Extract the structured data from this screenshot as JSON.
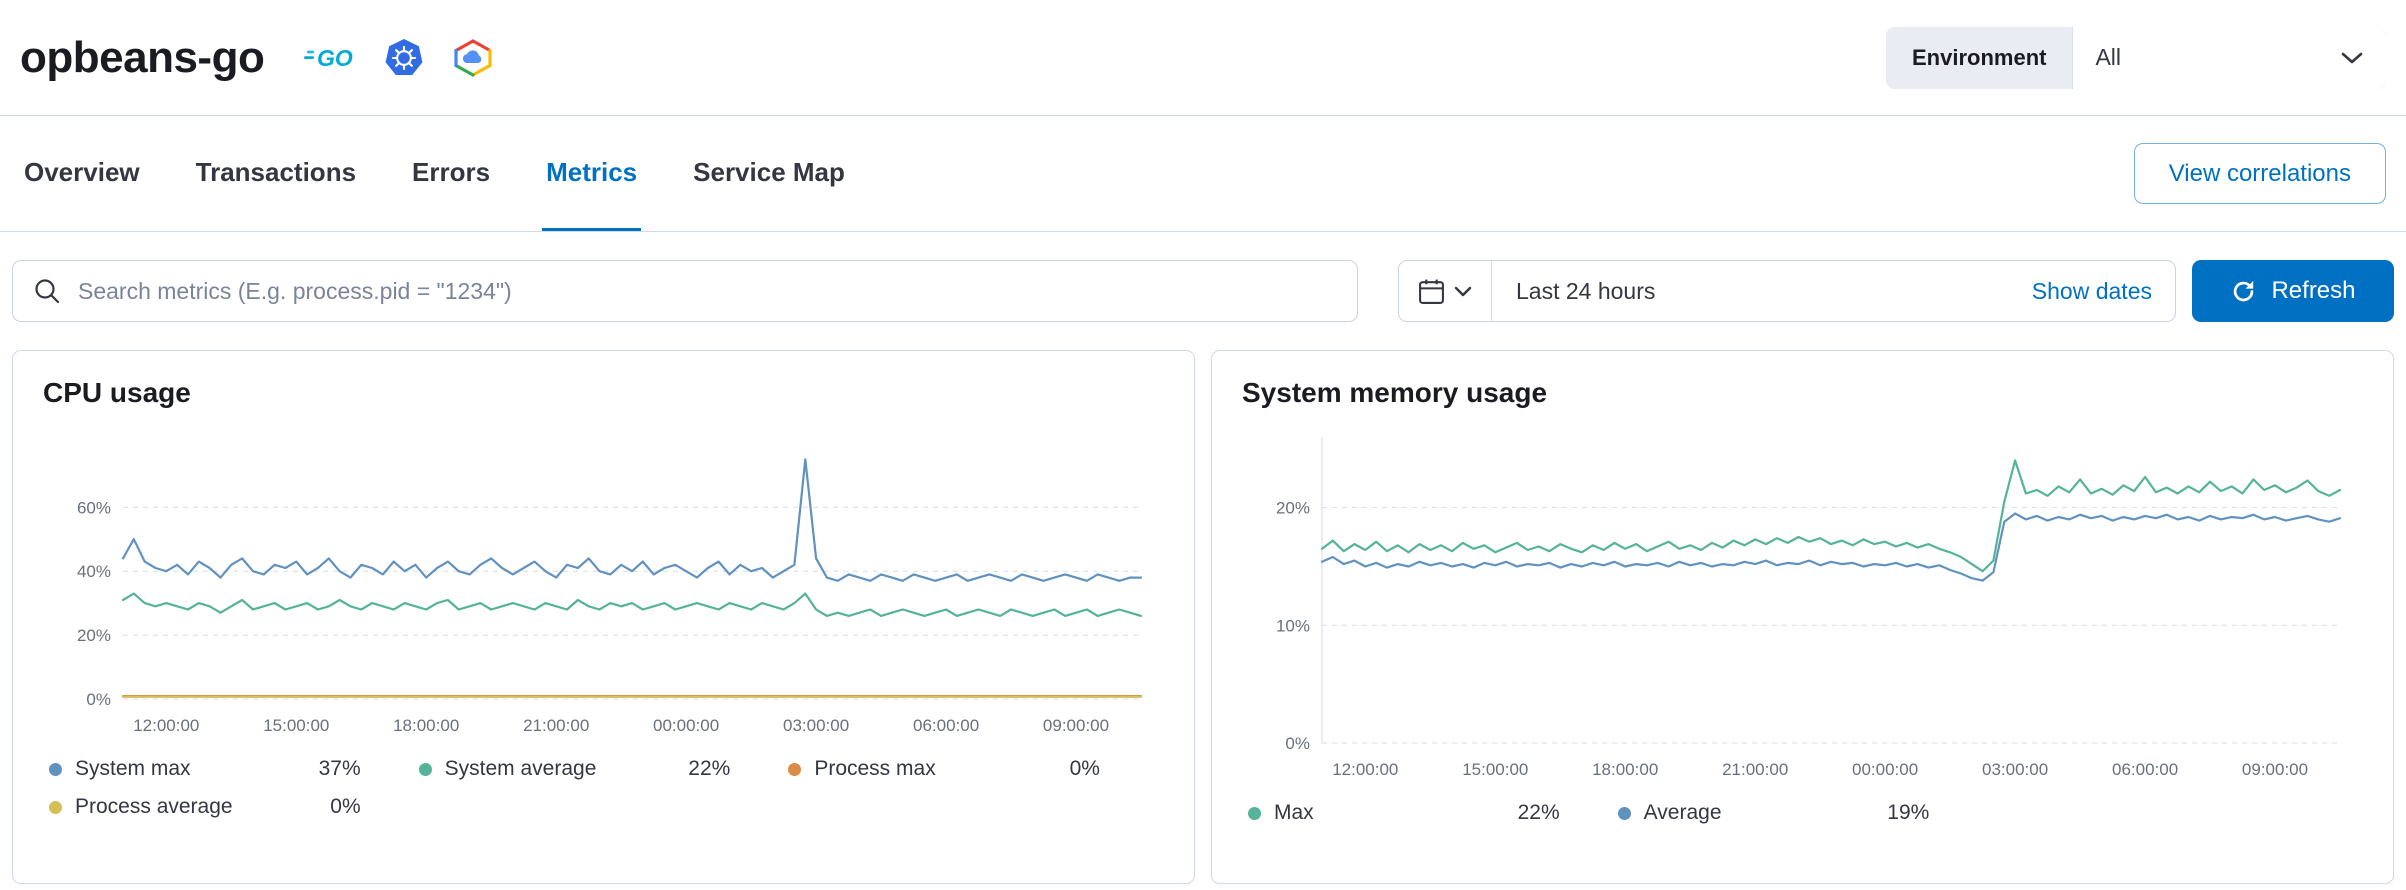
{
  "header": {
    "service_name": "opbeans-go",
    "environment": {
      "label": "Environment",
      "value": "All"
    }
  },
  "tabs": {
    "items": [
      {
        "label": "Overview"
      },
      {
        "label": "Transactions"
      },
      {
        "label": "Errors"
      },
      {
        "label": "Metrics"
      },
      {
        "label": "Service Map"
      }
    ],
    "active": "Metrics",
    "view_correlations": "View correlations"
  },
  "toolbar": {
    "search_placeholder": "Search metrics (E.g. process.pid = \"1234\")",
    "time_range": "Last 24 hours",
    "show_dates": "Show dates",
    "refresh": "Refresh"
  },
  "colors": {
    "accent_blue": "#0071c2",
    "panel_border": "#D3DAE6",
    "grid": "#D8DDE6",
    "tick_text": "#69707D"
  },
  "chart_data": [
    {
      "type": "line",
      "title": "CPU usage",
      "xlim": [
        0,
        23.5
      ],
      "ylim": [
        0,
        82
      ],
      "x_start": 0,
      "x_step": 0.25,
      "grid": true,
      "left_axis": false,
      "yticks": [
        {
          "v": 0,
          "label": "0%"
        },
        {
          "v": 20,
          "label": "20%"
        },
        {
          "v": 40,
          "label": "40%"
        },
        {
          "v": 60,
          "label": "60%"
        }
      ],
      "xticks": [
        {
          "v": 1,
          "label": "12:00:00"
        },
        {
          "v": 4,
          "label": "15:00:00"
        },
        {
          "v": 7,
          "label": "18:00:00"
        },
        {
          "v": 10,
          "label": "21:00:00"
        },
        {
          "v": 13,
          "label": "00:00:00"
        },
        {
          "v": 16,
          "label": "03:00:00"
        },
        {
          "v": 19,
          "label": "06:00:00"
        },
        {
          "v": 22,
          "label": "09:00:00"
        }
      ],
      "series": [
        {
          "name": "System max",
          "color": "#6092C0",
          "legend_value": "37%",
          "values": [
            44,
            50,
            43,
            41,
            40,
            42,
            39,
            43,
            41,
            38,
            42,
            44,
            40,
            39,
            42,
            41,
            43,
            39,
            41,
            44,
            40,
            38,
            42,
            41,
            39,
            43,
            40,
            42,
            38,
            41,
            43,
            40,
            39,
            42,
            44,
            41,
            39,
            41,
            43,
            40,
            38,
            42,
            41,
            44,
            40,
            39,
            42,
            40,
            43,
            39,
            41,
            42,
            40,
            38,
            41,
            43,
            39,
            42,
            40,
            41,
            38,
            40,
            42,
            75,
            44,
            38,
            37,
            39,
            38,
            37,
            39,
            38,
            37,
            39,
            38,
            37,
            38,
            39,
            37,
            38,
            39,
            38,
            37,
            39,
            38,
            37,
            38,
            39,
            38,
            37,
            39,
            38,
            37,
            38,
            38
          ]
        },
        {
          "name": "System average",
          "color": "#54B399",
          "legend_value": "22%",
          "values": [
            31,
            33,
            30,
            29,
            30,
            29,
            28,
            30,
            29,
            27,
            29,
            31,
            28,
            29,
            30,
            28,
            29,
            30,
            28,
            29,
            31,
            29,
            28,
            30,
            29,
            28,
            30,
            29,
            28,
            30,
            31,
            28,
            29,
            30,
            28,
            29,
            30,
            29,
            28,
            30,
            29,
            28,
            31,
            29,
            28,
            30,
            29,
            30,
            28,
            29,
            30,
            28,
            29,
            30,
            29,
            28,
            30,
            29,
            28,
            30,
            29,
            28,
            30,
            33,
            28,
            26,
            27,
            26,
            27,
            28,
            26,
            27,
            28,
            27,
            26,
            27,
            28,
            26,
            27,
            28,
            27,
            26,
            28,
            27,
            26,
            27,
            28,
            26,
            27,
            28,
            26,
            27,
            28,
            27,
            26
          ]
        },
        {
          "name": "Process max",
          "color": "#DA8B45",
          "legend_value": "0%",
          "x": [
            0,
            23.5
          ],
          "values": [
            0.9,
            0.9
          ]
        },
        {
          "name": "Process average",
          "color": "#D6BF57",
          "legend_value": "0%",
          "x": [
            0,
            23.5
          ],
          "values": [
            0.7,
            0.7
          ]
        }
      ]
    },
    {
      "type": "line",
      "title": "System memory usage",
      "xlim": [
        0,
        23.5
      ],
      "ylim": [
        0,
        26
      ],
      "x_start": 0,
      "x_step": 0.25,
      "grid": true,
      "left_axis": true,
      "yticks": [
        {
          "v": 0,
          "label": "0%"
        },
        {
          "v": 10,
          "label": "10%"
        },
        {
          "v": 20,
          "label": "20%"
        }
      ],
      "xticks": [
        {
          "v": 1,
          "label": "12:00:00"
        },
        {
          "v": 4,
          "label": "15:00:00"
        },
        {
          "v": 7,
          "label": "18:00:00"
        },
        {
          "v": 10,
          "label": "21:00:00"
        },
        {
          "v": 13,
          "label": "00:00:00"
        },
        {
          "v": 16,
          "label": "03:00:00"
        },
        {
          "v": 19,
          "label": "06:00:00"
        },
        {
          "v": 22,
          "label": "09:00:00"
        }
      ],
      "series": [
        {
          "name": "Max",
          "color": "#54B399",
          "legend_value": "22%",
          "values": [
            16.5,
            17.2,
            16.3,
            16.9,
            16.4,
            17.1,
            16.3,
            16.8,
            16.2,
            16.9,
            16.4,
            16.8,
            16.3,
            17,
            16.5,
            16.8,
            16.2,
            16.6,
            17,
            16.4,
            16.7,
            16.3,
            16.9,
            16.5,
            16.2,
            16.8,
            16.4,
            17,
            16.5,
            16.9,
            16.3,
            16.7,
            17.1,
            16.5,
            16.8,
            16.4,
            17,
            16.6,
            17.2,
            16.8,
            17.3,
            16.9,
            17.4,
            17,
            17.5,
            17.1,
            17.4,
            16.9,
            17.2,
            16.8,
            17.3,
            16.9,
            17.1,
            16.7,
            17,
            16.6,
            16.9,
            16.5,
            16.2,
            15.8,
            15.2,
            14.6,
            15.5,
            20.5,
            24,
            21.2,
            21.5,
            21,
            21.8,
            21.3,
            22.4,
            21.2,
            21.6,
            21.1,
            21.9,
            21.4,
            22.6,
            21.3,
            21.7,
            21.2,
            21.8,
            21.3,
            22.2,
            21.4,
            21.8,
            21.2,
            22.4,
            21.5,
            21.9,
            21.3,
            21.7,
            22.3,
            21.4,
            21,
            21.5
          ]
        },
        {
          "name": "Average",
          "color": "#6092C0",
          "legend_value": "19%",
          "values": [
            15.4,
            15.8,
            15.2,
            15.5,
            15,
            15.3,
            14.9,
            15.2,
            15,
            15.4,
            15.1,
            15.3,
            15,
            15.2,
            14.9,
            15.3,
            15.1,
            15.4,
            15,
            15.2,
            15.1,
            15.3,
            14.9,
            15.2,
            15,
            15.3,
            15.1,
            15.4,
            15,
            15.2,
            15.1,
            15.3,
            15,
            15.4,
            15.1,
            15.3,
            15,
            15.2,
            15.1,
            15.4,
            15.2,
            15.5,
            15.1,
            15.3,
            15.2,
            15.5,
            15.1,
            15.4,
            15.2,
            15.3,
            15,
            15.2,
            15.1,
            15.3,
            15,
            15.2,
            14.9,
            15.1,
            14.7,
            14.4,
            14,
            13.8,
            14.5,
            18.8,
            19.5,
            19,
            19.3,
            18.9,
            19.2,
            19,
            19.4,
            19.1,
            19.3,
            18.9,
            19.2,
            19,
            19.3,
            19.1,
            19.4,
            19,
            19.2,
            18.9,
            19.3,
            19,
            19.2,
            19.1,
            19.4,
            19,
            19.2,
            18.9,
            19.1,
            19.3,
            19,
            18.8,
            19.1
          ]
        }
      ]
    }
  ]
}
